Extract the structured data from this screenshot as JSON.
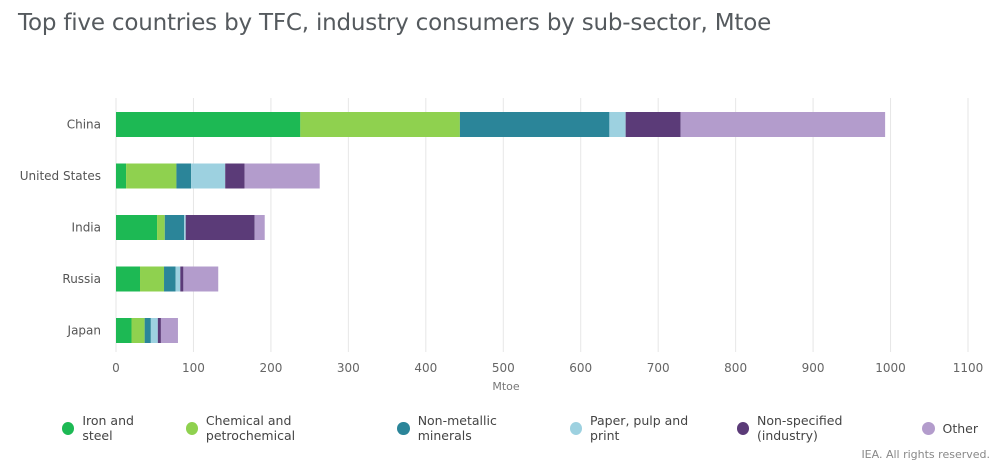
{
  "credit": "IEA. All rights reserved.",
  "chart_data": {
    "type": "bar",
    "orientation": "horizontal",
    "stacked": true,
    "title": "Top five countries by TFC, industry consumers by sub-sector, Mtoe",
    "xlabel": "Mtoe",
    "xlim": [
      0,
      1100
    ],
    "xticks": [
      0,
      100,
      200,
      300,
      400,
      500,
      600,
      700,
      800,
      900,
      1000,
      1100
    ],
    "grid": true,
    "legend_position": "bottom",
    "categories": [
      "China",
      "United States",
      "India",
      "Russia",
      "Japan"
    ],
    "series": [
      {
        "name": "Iron and steel",
        "color": "#1db954",
        "values": [
          238,
          13,
          53,
          31,
          20
        ]
      },
      {
        "name": "Chemical and petrochemical",
        "color": "#8fd14f",
        "values": [
          206,
          65,
          10,
          31,
          17
        ]
      },
      {
        "name": "Non-metallic minerals",
        "color": "#2b8599",
        "values": [
          193,
          19,
          25,
          15,
          8
        ]
      },
      {
        "name": "Paper, pulp and print",
        "color": "#9dd1e0",
        "values": [
          21,
          44,
          2,
          6,
          9
        ]
      },
      {
        "name": "Non-specified (industry)",
        "color": "#5b3b78",
        "values": [
          71,
          25,
          89,
          4,
          4
        ]
      },
      {
        "name": "Other",
        "color": "#b39ccc",
        "values": [
          264,
          97,
          13,
          45,
          22
        ]
      }
    ]
  }
}
